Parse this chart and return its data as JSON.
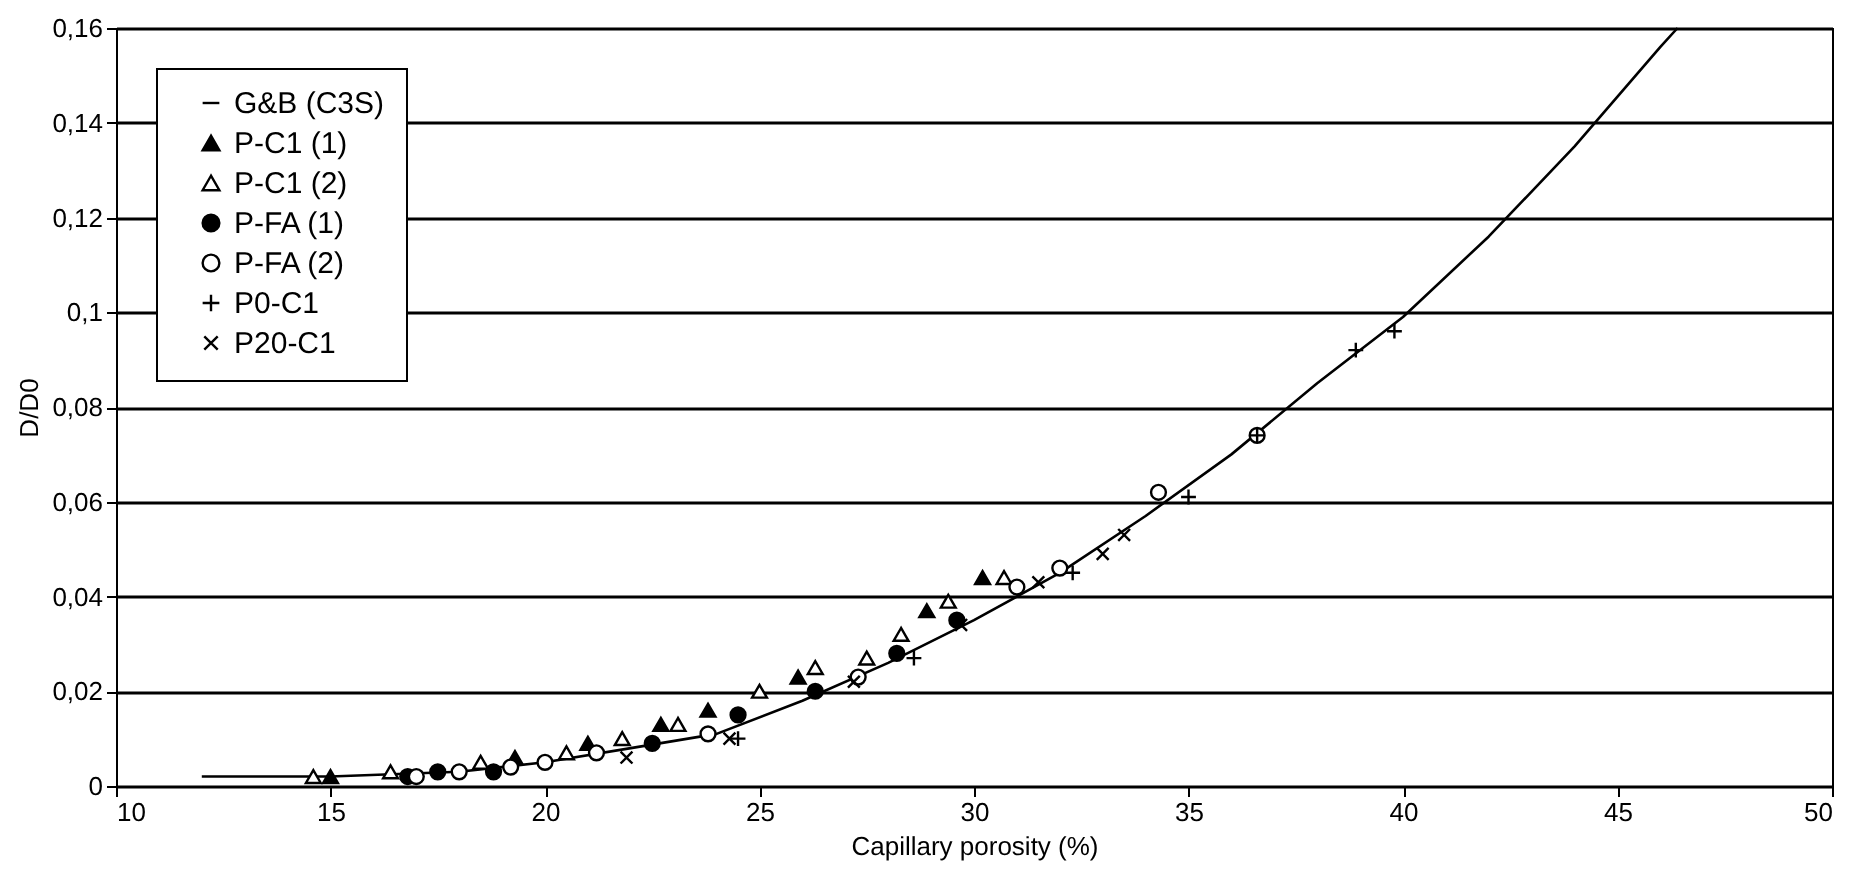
{
  "chart_data": {
    "type": "scatter",
    "xlabel": "Capillary porosity (%)",
    "ylabel": "D/D0",
    "xlim": [
      10,
      50
    ],
    "xticks": [
      10,
      15,
      20,
      25,
      30,
      35,
      40,
      45,
      50
    ],
    "ylim": [
      0,
      0.16
    ],
    "yticks": [
      0,
      {
        "value": 0.02,
        "label": "0,02"
      },
      {
        "value": 0.04,
        "label": "0,04"
      },
      {
        "value": 0.06,
        "label": "0,06"
      },
      {
        "value": 0.08,
        "label": "0,08"
      },
      {
        "value": 0.1,
        "label": "0,1"
      },
      {
        "value": 0.12,
        "label": "0,12"
      },
      {
        "value": 0.14,
        "label": "0,14"
      },
      {
        "value": 0.16,
        "label": "0,16"
      }
    ],
    "grid": "y",
    "legend": "top left",
    "series": [
      {
        "name": "G&B (C3S)",
        "type": "line",
        "color": "#000000",
        "marker": "none",
        "x": [
          12,
          15,
          18,
          20,
          22,
          24,
          26,
          28,
          30,
          32,
          34,
          36,
          38,
          40,
          42,
          44,
          46,
          46.4
        ],
        "values": [
          0.002,
          0.002,
          0.003,
          0.005,
          0.008,
          0.011,
          0.018,
          0.026,
          0.035,
          0.045,
          0.057,
          0.07,
          0.085,
          0.099,
          0.116,
          0.135,
          0.156,
          0.16
        ]
      },
      {
        "name": "P-C1 (1)",
        "color": "#000000",
        "marker": "triangle",
        "x": [
          15,
          16.9,
          18,
          19.3,
          21,
          22.7,
          23.8,
          25.9,
          28.9,
          30.2
        ],
        "values": [
          0.002,
          null,
          null,
          0.006,
          0.009,
          0.013,
          0.016,
          0.023,
          0.037,
          0.044
        ]
      },
      {
        "name": "P-C1 (2)",
        "color": "#ffffff",
        "marker": "triangle",
        "x": [
          14.6,
          16.4,
          18.5,
          20.5,
          21.8,
          23.1,
          25,
          26.3,
          27.5,
          28.3,
          29.4,
          30.7
        ],
        "values": [
          0.002,
          0.003,
          0.005,
          0.007,
          0.01,
          0.013,
          0.02,
          0.025,
          0.027,
          0.032,
          0.039,
          0.044
        ]
      },
      {
        "name": "P-FA (1)",
        "color": "#000000",
        "marker": "circle",
        "x": [
          16.8,
          17.5,
          18.8,
          22.5,
          24.5,
          26.3,
          28.2,
          29.6
        ],
        "values": [
          0.002,
          0.003,
          0.003,
          0.009,
          0.015,
          0.02,
          0.028,
          0.035
        ]
      },
      {
        "name": "P-FA (2)",
        "color": "#ffffff",
        "marker": "circle",
        "x": [
          17,
          18,
          19.2,
          20,
          21.2,
          23.8,
          27.3,
          31,
          32,
          34.3,
          36.6
        ],
        "values": [
          0.002,
          0.003,
          0.004,
          0.005,
          0.007,
          0.011,
          0.023,
          0.042,
          0.046,
          0.062,
          0.074
        ]
      },
      {
        "name": "P0-C1",
        "color": "#000000",
        "marker": "plus",
        "x": [
          24.5,
          28.6,
          32.3,
          35,
          36.6,
          38.9,
          39.8
        ],
        "values": [
          0.01,
          0.027,
          0.045,
          0.061,
          0.074,
          0.092,
          0.096
        ]
      },
      {
        "name": "P20-C1",
        "color": "#000000",
        "marker": "cross",
        "x": [
          21.9,
          24.3,
          27.2,
          29.7,
          31.5,
          33,
          33.5
        ],
        "values": [
          0.006,
          0.01,
          0.022,
          0.034,
          0.043,
          0.049,
          0.053
        ]
      }
    ]
  }
}
